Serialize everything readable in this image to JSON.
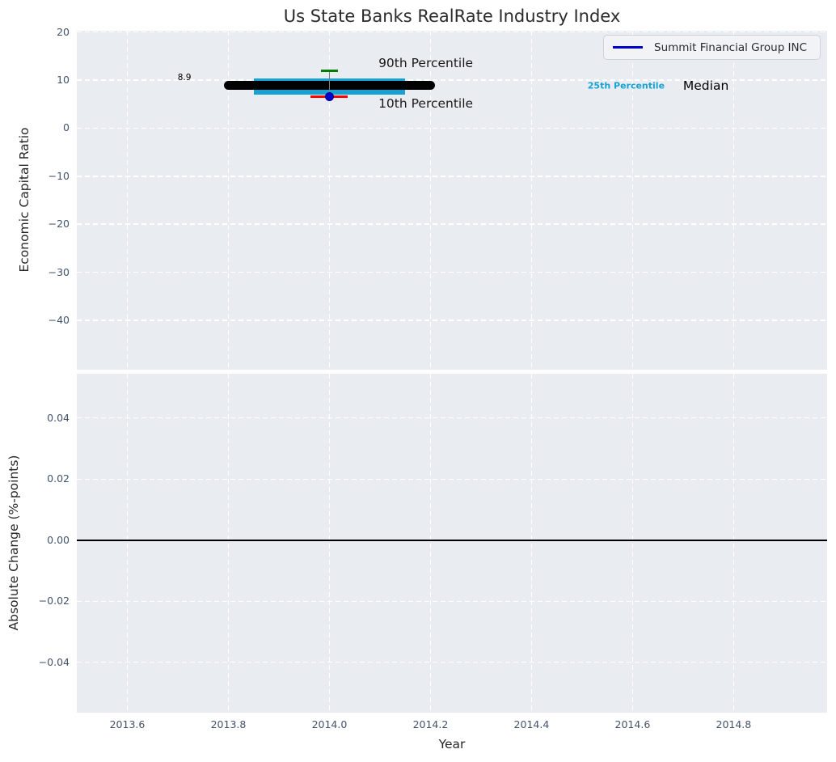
{
  "colors": {
    "axes_bg": "#e9edf1",
    "grid": "#ffffff",
    "tick_label": "#43536b",
    "title_text": "#2b2b2b",
    "annotation_text": "#1a1a1a",
    "median": "#000000",
    "percentile_band": "#16a2d4",
    "band_label": "#16a2d4",
    "p90": "#008000",
    "p10": "#ff0000",
    "whisker": "#7f7f7f",
    "company": "#0000cd",
    "company_edge": "#00008b",
    "zero_line": "#000000",
    "legend_line": "#0000cd"
  },
  "chart_data": [
    {
      "type": "boxplot",
      "panel": "top",
      "title": "Us State Banks RealRate Industry Index",
      "xlabel": "Year",
      "ylabel": "Economic Capital Ratio",
      "xlim": [
        2013.5,
        2014.985
      ],
      "ylim": [
        -50.3,
        20.3
      ],
      "grid": "white dashed, on",
      "legend": {
        "label": "Summit Financial Group INC",
        "position": "upper right"
      },
      "xticks": [
        {
          "v": 2013.6,
          "label": "2013.6"
        },
        {
          "v": 2013.8,
          "label": "2013.8"
        },
        {
          "v": 2014.0,
          "label": "2014.0"
        },
        {
          "v": 2014.2,
          "label": "2014.2"
        },
        {
          "v": 2014.4,
          "label": "2014.4"
        },
        {
          "v": 2014.6,
          "label": "2014.6"
        },
        {
          "v": 2014.8,
          "label": "2014.8"
        }
      ],
      "yticks": [
        {
          "v": 20,
          "label": "20"
        },
        {
          "v": 10,
          "label": "10"
        },
        {
          "v": 0,
          "label": "0"
        },
        {
          "v": -10,
          "label": "−10"
        },
        {
          "v": -20,
          "label": "−20"
        },
        {
          "v": -30,
          "label": "−30"
        },
        {
          "v": -40,
          "label": "−40"
        }
      ],
      "industry": {
        "median": 8.9,
        "median_x": [
          2013.8,
          2014.2
        ],
        "p25": 7.0,
        "p75": 10.4,
        "band_x": [
          2013.85,
          2014.15
        ],
        "p90": 12.0,
        "p10": 6.5,
        "whisker_x": 2014.0
      },
      "company": {
        "name": "Summit Financial Group INC",
        "points": [
          {
            "x": 2014.0,
            "y": 6.5
          }
        ]
      },
      "annotations": [
        {
          "name": "p90-label",
          "text": "90th Percentile",
          "x": 2014.097,
          "y": 13.6,
          "ha": "left",
          "size": 15.5,
          "color": "#1a1a1a",
          "weight": "normal"
        },
        {
          "name": "p10-label",
          "text": "10th Percentile",
          "x": 2014.097,
          "y": 5.1,
          "ha": "left",
          "size": 15.5,
          "color": "#1a1a1a",
          "weight": "normal"
        },
        {
          "name": "median-value-label",
          "text": "8.9",
          "x": 2013.713,
          "y": 10.5,
          "ha": "center",
          "size": 10.5,
          "color": "#000000",
          "weight": "normal"
        },
        {
          "name": "p25-label",
          "text": "25th Percentile",
          "x": 2014.511,
          "y": 8.85,
          "ha": "left",
          "size": 11,
          "color": "#16a2d4",
          "weight": "bold"
        },
        {
          "name": "median-label",
          "text": "Median",
          "x": 2014.7,
          "y": 8.85,
          "ha": "left",
          "size": 15.5,
          "color": "#000000",
          "weight": "normal"
        }
      ]
    },
    {
      "type": "line",
      "panel": "bottom",
      "xlabel": "Year",
      "ylabel": "Absolute Change (%-points)",
      "xlim": [
        2013.5,
        2014.985
      ],
      "ylim": [
        -0.0565,
        0.0545
      ],
      "grid": "white dashed, on",
      "yticks": [
        {
          "v": 0.04,
          "label": "0.04"
        },
        {
          "v": 0.02,
          "label": "0.02"
        },
        {
          "v": 0,
          "label": "0.00"
        },
        {
          "v": -0.02,
          "label": "−0.02"
        },
        {
          "v": -0.04,
          "label": "−0.04"
        }
      ],
      "zero_line_y": 0.0,
      "series": []
    }
  ]
}
